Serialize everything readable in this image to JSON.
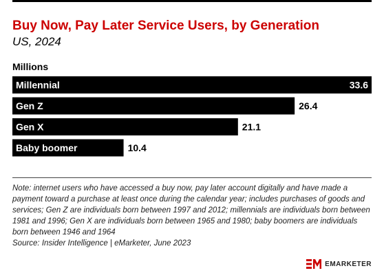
{
  "header": {
    "title": "Buy Now, Pay Later Service Users, by Generation",
    "subtitle": "US, 2024",
    "unit_label": "Millions"
  },
  "chart_data": {
    "type": "bar",
    "orientation": "horizontal",
    "categories": [
      "Millennial",
      "Gen Z",
      "Gen X",
      "Baby boomer"
    ],
    "values": [
      33.6,
      26.4,
      21.1,
      10.4
    ],
    "value_labels": [
      "33.6",
      "26.4",
      "21.1",
      "10.4"
    ],
    "title": "Buy Now, Pay Later Service Users, by Generation",
    "subtitle": "US, 2024",
    "unit": "Millions",
    "xlim": [
      0,
      33.6
    ],
    "grid": false,
    "bar_color": "#000000",
    "label_color": "#ffffff"
  },
  "footer": {
    "note": "Note: internet users who have accessed a buy now, pay later account digitally and have made a payment toward a purchase at least once during the calendar year; includes purchases of goods and services; Gen Z are individuals born between 1997 and 2012; millennials are individuals born between 1981 and 1996; Gen X are individuals born between 1965 and 1980; baby boomers are individuals born between 1946 and 1964",
    "source": "Source: Insider Intelligence | eMarketer, June 2023",
    "brand": "EMARKETER"
  },
  "colors": {
    "title": "#cc0000",
    "logo": "#cc0000"
  }
}
